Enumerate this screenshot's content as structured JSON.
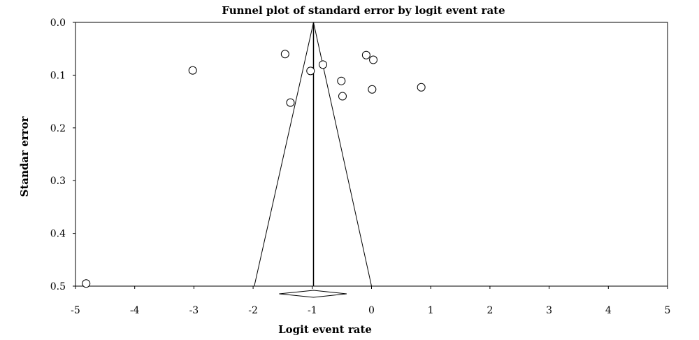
{
  "chart_data": {
    "type": "scatter",
    "title": "Funnel plot of standard error by logit event rate",
    "xlabel": "Logit event rate",
    "ylabel": "Standar error",
    "xlim": [
      -5,
      5
    ],
    "ylim": [
      0.0,
      0.5
    ],
    "y_inverted": true,
    "grid": false,
    "x_ticks": [
      -5,
      -4,
      -3,
      -2,
      -1,
      0,
      1,
      2,
      3,
      4,
      5
    ],
    "x_tick_labels": [
      "-5",
      "-4",
      "-3",
      "-2",
      "-1",
      "0",
      "1",
      "2",
      "3",
      "4",
      "5"
    ],
    "y_ticks": [
      0.0,
      0.1,
      0.2,
      0.3,
      0.4,
      0.5
    ],
    "y_tick_labels": [
      "0.0",
      "0.1",
      "0.2",
      "0.3",
      "0.4",
      "0.5"
    ],
    "points": [
      {
        "x": -3.02,
        "y": 0.091
      },
      {
        "x": -1.46,
        "y": 0.06
      },
      {
        "x": -1.37,
        "y": 0.152
      },
      {
        "x": -1.03,
        "y": 0.092
      },
      {
        "x": -0.82,
        "y": 0.08
      },
      {
        "x": -0.51,
        "y": 0.111
      },
      {
        "x": -0.49,
        "y": 0.14
      },
      {
        "x": -0.09,
        "y": 0.062
      },
      {
        "x": 0.03,
        "y": 0.071
      },
      {
        "x": 0.01,
        "y": 0.127
      },
      {
        "x": 0.84,
        "y": 0.123
      },
      {
        "x": -4.82,
        "y": 0.495
      }
    ],
    "funnel": {
      "apex": {
        "x": -0.98,
        "y": 0.0
      },
      "base_left": {
        "x": -1.98,
        "y": 0.5
      },
      "base_right": {
        "x": 0.0,
        "y": 0.5
      },
      "center_line_x": -0.98
    },
    "summary_diamond": {
      "center": -0.98,
      "lower": -1.56,
      "upper": -0.42
    }
  }
}
